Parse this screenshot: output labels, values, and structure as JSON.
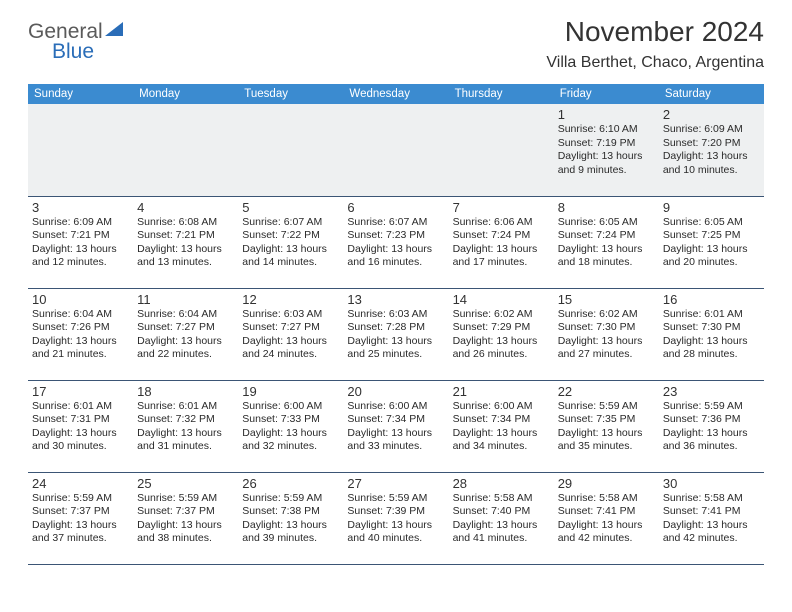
{
  "brand": {
    "word1": "General",
    "word2": "Blue"
  },
  "title": "November 2024",
  "location": "Villa Berthet, Chaco, Argentina",
  "colors": {
    "header_bg": "#3b8bd0",
    "header_text": "#ffffff",
    "rule": "#3b5575",
    "first_row_bg": "#eef0f1",
    "brand_blue": "#2a6db8"
  },
  "daynames": [
    "Sunday",
    "Monday",
    "Tuesday",
    "Wednesday",
    "Thursday",
    "Friday",
    "Saturday"
  ],
  "weeks": [
    [
      null,
      null,
      null,
      null,
      null,
      {
        "n": "1",
        "sunrise": "Sunrise: 6:10 AM",
        "sunset": "Sunset: 7:19 PM",
        "day1": "Daylight: 13 hours",
        "day2": "and 9 minutes."
      },
      {
        "n": "2",
        "sunrise": "Sunrise: 6:09 AM",
        "sunset": "Sunset: 7:20 PM",
        "day1": "Daylight: 13 hours",
        "day2": "and 10 minutes."
      }
    ],
    [
      {
        "n": "3",
        "sunrise": "Sunrise: 6:09 AM",
        "sunset": "Sunset: 7:21 PM",
        "day1": "Daylight: 13 hours",
        "day2": "and 12 minutes."
      },
      {
        "n": "4",
        "sunrise": "Sunrise: 6:08 AM",
        "sunset": "Sunset: 7:21 PM",
        "day1": "Daylight: 13 hours",
        "day2": "and 13 minutes."
      },
      {
        "n": "5",
        "sunrise": "Sunrise: 6:07 AM",
        "sunset": "Sunset: 7:22 PM",
        "day1": "Daylight: 13 hours",
        "day2": "and 14 minutes."
      },
      {
        "n": "6",
        "sunrise": "Sunrise: 6:07 AM",
        "sunset": "Sunset: 7:23 PM",
        "day1": "Daylight: 13 hours",
        "day2": "and 16 minutes."
      },
      {
        "n": "7",
        "sunrise": "Sunrise: 6:06 AM",
        "sunset": "Sunset: 7:24 PM",
        "day1": "Daylight: 13 hours",
        "day2": "and 17 minutes."
      },
      {
        "n": "8",
        "sunrise": "Sunrise: 6:05 AM",
        "sunset": "Sunset: 7:24 PM",
        "day1": "Daylight: 13 hours",
        "day2": "and 18 minutes."
      },
      {
        "n": "9",
        "sunrise": "Sunrise: 6:05 AM",
        "sunset": "Sunset: 7:25 PM",
        "day1": "Daylight: 13 hours",
        "day2": "and 20 minutes."
      }
    ],
    [
      {
        "n": "10",
        "sunrise": "Sunrise: 6:04 AM",
        "sunset": "Sunset: 7:26 PM",
        "day1": "Daylight: 13 hours",
        "day2": "and 21 minutes."
      },
      {
        "n": "11",
        "sunrise": "Sunrise: 6:04 AM",
        "sunset": "Sunset: 7:27 PM",
        "day1": "Daylight: 13 hours",
        "day2": "and 22 minutes."
      },
      {
        "n": "12",
        "sunrise": "Sunrise: 6:03 AM",
        "sunset": "Sunset: 7:27 PM",
        "day1": "Daylight: 13 hours",
        "day2": "and 24 minutes."
      },
      {
        "n": "13",
        "sunrise": "Sunrise: 6:03 AM",
        "sunset": "Sunset: 7:28 PM",
        "day1": "Daylight: 13 hours",
        "day2": "and 25 minutes."
      },
      {
        "n": "14",
        "sunrise": "Sunrise: 6:02 AM",
        "sunset": "Sunset: 7:29 PM",
        "day1": "Daylight: 13 hours",
        "day2": "and 26 minutes."
      },
      {
        "n": "15",
        "sunrise": "Sunrise: 6:02 AM",
        "sunset": "Sunset: 7:30 PM",
        "day1": "Daylight: 13 hours",
        "day2": "and 27 minutes."
      },
      {
        "n": "16",
        "sunrise": "Sunrise: 6:01 AM",
        "sunset": "Sunset: 7:30 PM",
        "day1": "Daylight: 13 hours",
        "day2": "and 28 minutes."
      }
    ],
    [
      {
        "n": "17",
        "sunrise": "Sunrise: 6:01 AM",
        "sunset": "Sunset: 7:31 PM",
        "day1": "Daylight: 13 hours",
        "day2": "and 30 minutes."
      },
      {
        "n": "18",
        "sunrise": "Sunrise: 6:01 AM",
        "sunset": "Sunset: 7:32 PM",
        "day1": "Daylight: 13 hours",
        "day2": "and 31 minutes."
      },
      {
        "n": "19",
        "sunrise": "Sunrise: 6:00 AM",
        "sunset": "Sunset: 7:33 PM",
        "day1": "Daylight: 13 hours",
        "day2": "and 32 minutes."
      },
      {
        "n": "20",
        "sunrise": "Sunrise: 6:00 AM",
        "sunset": "Sunset: 7:34 PM",
        "day1": "Daylight: 13 hours",
        "day2": "and 33 minutes."
      },
      {
        "n": "21",
        "sunrise": "Sunrise: 6:00 AM",
        "sunset": "Sunset: 7:34 PM",
        "day1": "Daylight: 13 hours",
        "day2": "and 34 minutes."
      },
      {
        "n": "22",
        "sunrise": "Sunrise: 5:59 AM",
        "sunset": "Sunset: 7:35 PM",
        "day1": "Daylight: 13 hours",
        "day2": "and 35 minutes."
      },
      {
        "n": "23",
        "sunrise": "Sunrise: 5:59 AM",
        "sunset": "Sunset: 7:36 PM",
        "day1": "Daylight: 13 hours",
        "day2": "and 36 minutes."
      }
    ],
    [
      {
        "n": "24",
        "sunrise": "Sunrise: 5:59 AM",
        "sunset": "Sunset: 7:37 PM",
        "day1": "Daylight: 13 hours",
        "day2": "and 37 minutes."
      },
      {
        "n": "25",
        "sunrise": "Sunrise: 5:59 AM",
        "sunset": "Sunset: 7:37 PM",
        "day1": "Daylight: 13 hours",
        "day2": "and 38 minutes."
      },
      {
        "n": "26",
        "sunrise": "Sunrise: 5:59 AM",
        "sunset": "Sunset: 7:38 PM",
        "day1": "Daylight: 13 hours",
        "day2": "and 39 minutes."
      },
      {
        "n": "27",
        "sunrise": "Sunrise: 5:59 AM",
        "sunset": "Sunset: 7:39 PM",
        "day1": "Daylight: 13 hours",
        "day2": "and 40 minutes."
      },
      {
        "n": "28",
        "sunrise": "Sunrise: 5:58 AM",
        "sunset": "Sunset: 7:40 PM",
        "day1": "Daylight: 13 hours",
        "day2": "and 41 minutes."
      },
      {
        "n": "29",
        "sunrise": "Sunrise: 5:58 AM",
        "sunset": "Sunset: 7:41 PM",
        "day1": "Daylight: 13 hours",
        "day2": "and 42 minutes."
      },
      {
        "n": "30",
        "sunrise": "Sunrise: 5:58 AM",
        "sunset": "Sunset: 7:41 PM",
        "day1": "Daylight: 13 hours",
        "day2": "and 42 minutes."
      }
    ]
  ]
}
